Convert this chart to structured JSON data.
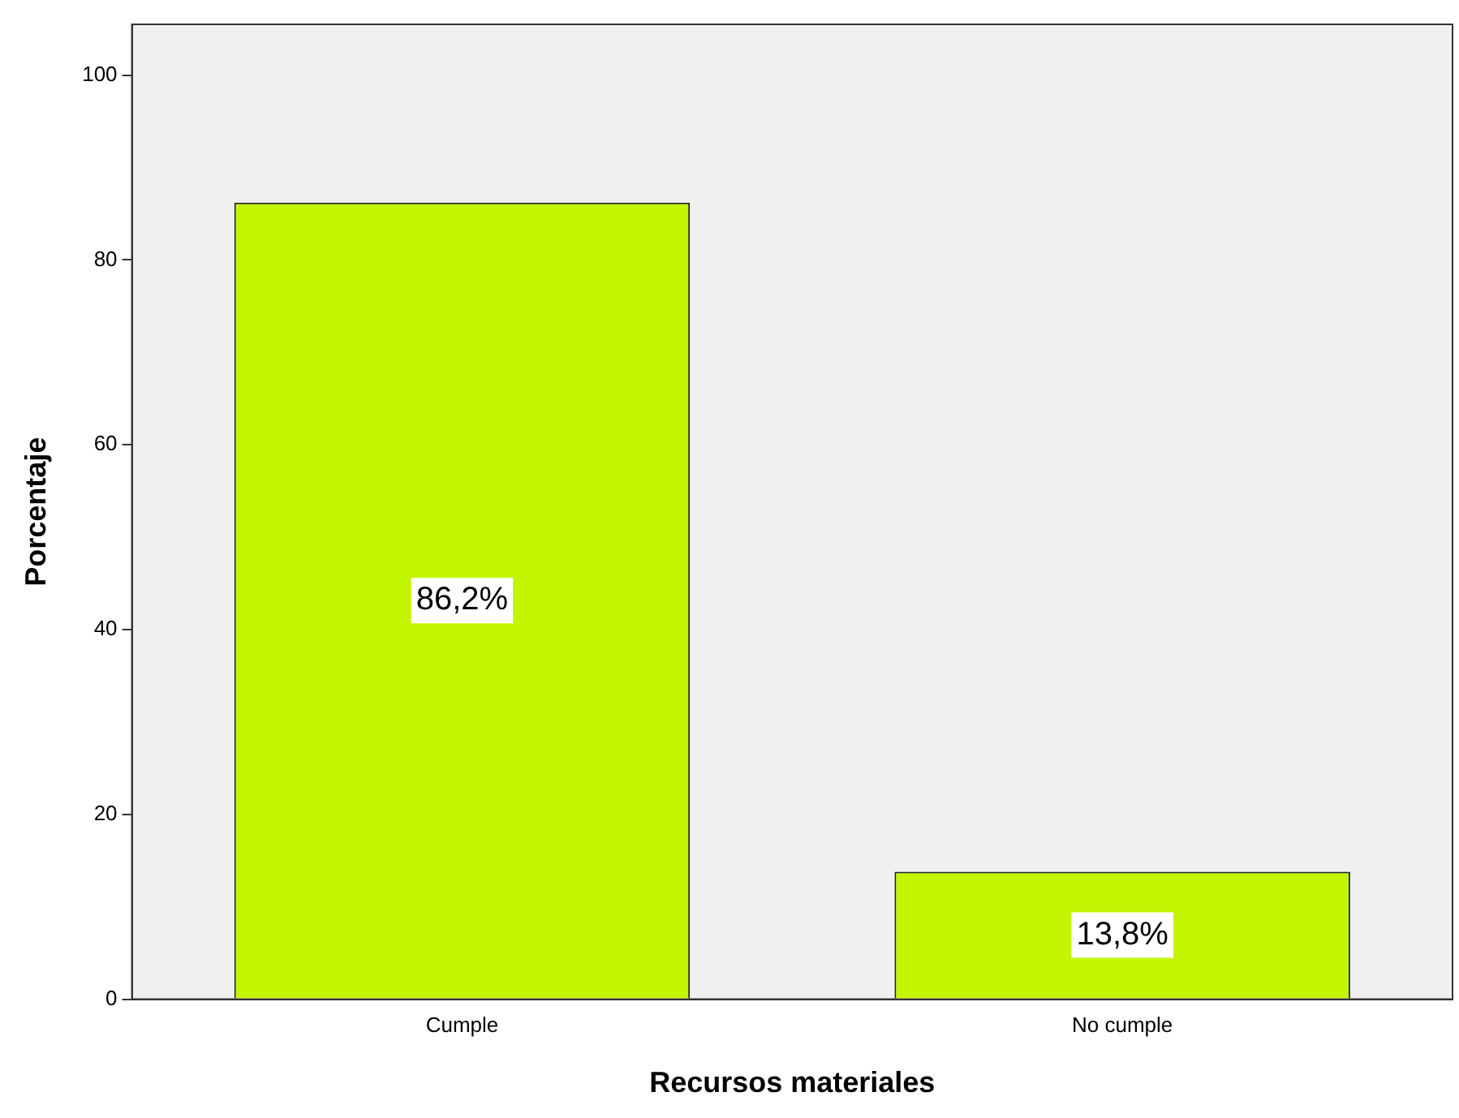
{
  "chart_data": {
    "type": "bar",
    "xlabel": "Recursos materiales",
    "ylabel": "Porcentaje",
    "categories": [
      "Cumple",
      "No cumple"
    ],
    "values": [
      86.2,
      13.8
    ],
    "color": "#c4f500",
    "value_labels": [
      "86,2%",
      "13,8%"
    ],
    "ylim": [
      0,
      105.5
    ],
    "yticks": [
      0,
      20,
      40,
      60,
      80,
      100
    ],
    "grid": false,
    "legend": false
  }
}
